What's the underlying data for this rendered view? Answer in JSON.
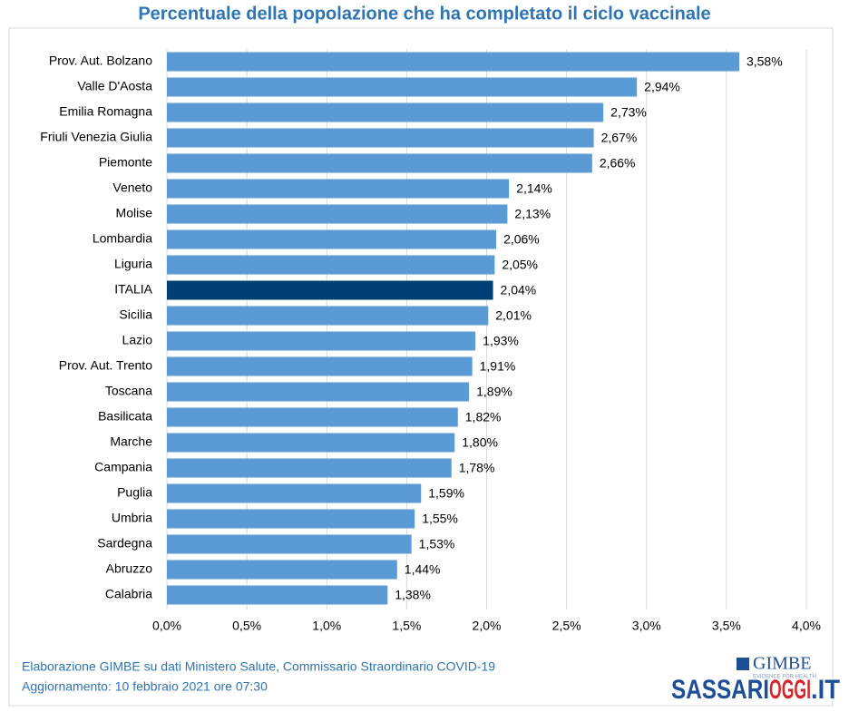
{
  "chart_data": {
    "type": "hbar",
    "title": "Percentuale della popolazione che ha completato il ciclo vaccinale",
    "categories": [
      "Prov. Aut. Bolzano",
      "Valle D'Aosta",
      "Emilia Romagna",
      "Friuli Venezia Giulia",
      "Piemonte",
      "Veneto",
      "Molise",
      "Lombardia",
      "Liguria",
      "ITALIA",
      "Sicilia",
      "Lazio",
      "Prov. Aut. Trento",
      "Toscana",
      "Basilicata",
      "Marche",
      "Campania",
      "Puglia",
      "Umbria",
      "Sardegna",
      "Abruzzo",
      "Calabria"
    ],
    "values": [
      3.58,
      2.94,
      2.73,
      2.67,
      2.66,
      2.14,
      2.13,
      2.06,
      2.05,
      2.04,
      2.01,
      1.93,
      1.91,
      1.89,
      1.82,
      1.8,
      1.78,
      1.59,
      1.55,
      1.53,
      1.44,
      1.38
    ],
    "value_labels": [
      "3,58%",
      "2,94%",
      "2,73%",
      "2,67%",
      "2,66%",
      "2,14%",
      "2,13%",
      "2,06%",
      "2,05%",
      "2,04%",
      "2,01%",
      "1,93%",
      "1,91%",
      "1,89%",
      "1,82%",
      "1,80%",
      "1,78%",
      "1,59%",
      "1,55%",
      "1,53%",
      "1,44%",
      "1,38%"
    ],
    "colors": [
      "#5b9bd5",
      "#5b9bd5",
      "#5b9bd5",
      "#5b9bd5",
      "#5b9bd5",
      "#5b9bd5",
      "#5b9bd5",
      "#5b9bd5",
      "#5b9bd5",
      "#003f73",
      "#5b9bd5",
      "#5b9bd5",
      "#5b9bd5",
      "#5b9bd5",
      "#5b9bd5",
      "#5b9bd5",
      "#5b9bd5",
      "#5b9bd5",
      "#5b9bd5",
      "#5b9bd5",
      "#5b9bd5",
      "#5b9bd5"
    ],
    "xlim": [
      0,
      4
    ],
    "xticks": [
      {
        "value": 0,
        "label": "0,0%"
      },
      {
        "value": 0.5,
        "label": "0,5%"
      },
      {
        "value": 1,
        "label": "1,0%"
      },
      {
        "value": 1.5,
        "label": "1,5%"
      },
      {
        "value": 2,
        "label": "2,0%"
      },
      {
        "value": 2.5,
        "label": "2,5%"
      },
      {
        "value": 3,
        "label": "3,0%"
      },
      {
        "value": 3.5,
        "label": "3,5%"
      },
      {
        "value": 4,
        "label": "4,0%"
      }
    ],
    "grid": true,
    "source": "Elaborazione GIMBE su dati Ministero Salute, Commissario Straordinario COVID-19",
    "updated": "Aggiornamento:  10 febbraio 2021 ore 07:30"
  },
  "logos": {
    "gimbe": "GIMBE",
    "gimbe_tagline": "EVIDENCE FOR HEALTH",
    "site_a": "SASSARI",
    "site_b": "OGGI",
    "site_c": ".IT"
  }
}
